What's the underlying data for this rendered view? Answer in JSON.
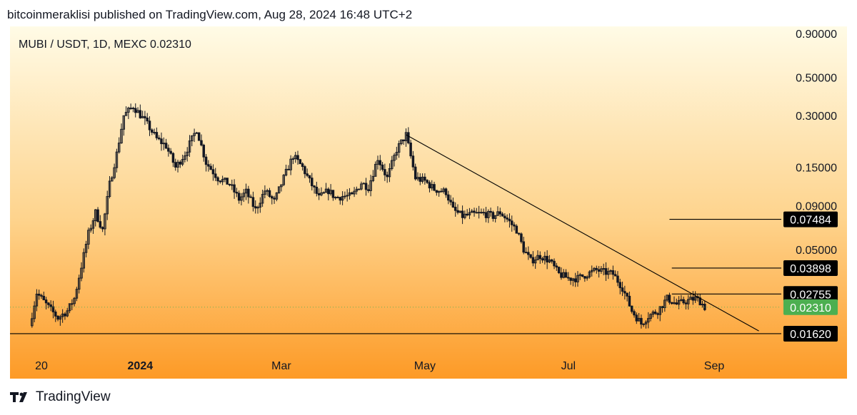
{
  "header": {
    "published_line": "bitcoinmeraklisi published on TradingView.com, Aug 28, 2024 16:48 UTC+2"
  },
  "chart": {
    "symbol_line": "MUBI / USDT, 1D, MEXC  0.02310"
  },
  "footer": {
    "brand": "TradingView"
  },
  "colors": {
    "bg_top": "#fffbe6",
    "bg_bottom": "#fd9a26",
    "candle": "#131722",
    "price_badge": "#4caf50",
    "label_badge": "#000000"
  },
  "chart_data": {
    "type": "candlestick",
    "log_scale": true,
    "ylim": [
      0.013,
      0.99
    ],
    "y_ticks": [
      0.9,
      0.5,
      0.3,
      0.15,
      0.09,
      0.05
    ],
    "y_tick_labels": [
      "0.90000",
      "0.50000",
      "0.30000",
      "0.15000",
      "0.09000",
      "0.05000"
    ],
    "x_ticks": [
      "20",
      "2024",
      "Mar",
      "May",
      "Jul",
      "Sep"
    ],
    "x_tick_dates": [
      "2023-11-20",
      "2024-01-01",
      "2024-03-01",
      "2024-05-01",
      "2024-07-01",
      "2024-09-01"
    ],
    "bold_x_tick": "2024",
    "last_price": 0.0231,
    "last_price_label": "0.02310",
    "levels": [
      {
        "value": 0.07484,
        "label": "0.07484",
        "from": "2024-08-13"
      },
      {
        "value": 0.03898,
        "label": "0.03898",
        "from": "2024-08-14"
      },
      {
        "value": 0.02755,
        "label": "0.02755",
        "from": "2024-08-14"
      },
      {
        "value": 0.0162,
        "label": "0.01620",
        "from": "2023-11-01"
      }
    ],
    "trendline": {
      "start": [
        "2024-04-23",
        0.232
      ],
      "end": [
        "2024-09-20",
        0.0168
      ]
    },
    "price_path": [
      [
        "2023-11-15",
        0.018
      ],
      [
        "2023-11-18",
        0.028
      ],
      [
        "2023-11-22",
        0.024
      ],
      [
        "2023-11-27",
        0.02
      ],
      [
        "2023-12-01",
        0.022
      ],
      [
        "2023-12-04",
        0.026
      ],
      [
        "2023-12-07",
        0.04
      ],
      [
        "2023-12-10",
        0.062
      ],
      [
        "2023-12-13",
        0.082
      ],
      [
        "2023-12-16",
        0.065
      ],
      [
        "2023-12-19",
        0.12
      ],
      [
        "2023-12-22",
        0.18
      ],
      [
        "2023-12-25",
        0.3
      ],
      [
        "2023-12-29",
        0.34
      ],
      [
        "2024-01-03",
        0.28
      ],
      [
        "2024-01-08",
        0.22
      ],
      [
        "2024-01-12",
        0.2
      ],
      [
        "2024-01-16",
        0.15
      ],
      [
        "2024-01-20",
        0.18
      ],
      [
        "2024-01-25",
        0.25
      ],
      [
        "2024-01-29",
        0.16
      ],
      [
        "2024-02-03",
        0.13
      ],
      [
        "2024-02-08",
        0.12
      ],
      [
        "2024-02-12",
        0.098
      ],
      [
        "2024-02-15",
        0.108
      ],
      [
        "2024-02-19",
        0.085
      ],
      [
        "2024-02-23",
        0.11
      ],
      [
        "2024-02-27",
        0.095
      ],
      [
        "2024-03-02",
        0.13
      ],
      [
        "2024-03-06",
        0.175
      ],
      [
        "2024-03-10",
        0.15
      ],
      [
        "2024-03-13",
        0.125
      ],
      [
        "2024-03-17",
        0.1
      ],
      [
        "2024-03-21",
        0.11
      ],
      [
        "2024-03-24",
        0.1
      ],
      [
        "2024-03-27",
        0.102
      ],
      [
        "2024-03-31",
        0.102
      ],
      [
        "2024-04-04",
        0.122
      ],
      [
        "2024-04-07",
        0.115
      ],
      [
        "2024-04-11",
        0.17
      ],
      [
        "2024-04-15",
        0.13
      ],
      [
        "2024-04-19",
        0.19
      ],
      [
        "2024-04-23",
        0.232
      ],
      [
        "2024-04-27",
        0.13
      ],
      [
        "2024-05-01",
        0.125
      ],
      [
        "2024-05-05",
        0.112
      ],
      [
        "2024-05-10",
        0.108
      ],
      [
        "2024-05-13",
        0.085
      ],
      [
        "2024-05-17",
        0.078
      ],
      [
        "2024-05-21",
        0.08
      ],
      [
        "2024-05-26",
        0.081
      ],
      [
        "2024-05-30",
        0.078
      ],
      [
        "2024-06-02",
        0.082
      ],
      [
        "2024-06-05",
        0.075
      ],
      [
        "2024-06-09",
        0.065
      ],
      [
        "2024-06-12",
        0.05
      ],
      [
        "2024-06-15",
        0.043
      ],
      [
        "2024-06-19",
        0.046
      ],
      [
        "2024-06-23",
        0.043
      ],
      [
        "2024-06-27",
        0.036
      ],
      [
        "2024-07-01",
        0.034
      ],
      [
        "2024-07-05",
        0.034
      ],
      [
        "2024-07-09",
        0.036
      ],
      [
        "2024-07-13",
        0.038
      ],
      [
        "2024-07-16",
        0.037
      ],
      [
        "2024-07-20",
        0.036
      ],
      [
        "2024-07-24",
        0.03
      ],
      [
        "2024-07-28",
        0.022
      ],
      [
        "2024-08-01",
        0.0185
      ],
      [
        "2024-08-04",
        0.0205
      ],
      [
        "2024-08-08",
        0.022
      ],
      [
        "2024-08-12",
        0.026
      ],
      [
        "2024-08-16",
        0.024
      ],
      [
        "2024-08-20",
        0.025
      ],
      [
        "2024-08-24",
        0.026
      ],
      [
        "2024-08-26",
        0.025
      ],
      [
        "2024-08-28",
        0.0231
      ]
    ]
  }
}
